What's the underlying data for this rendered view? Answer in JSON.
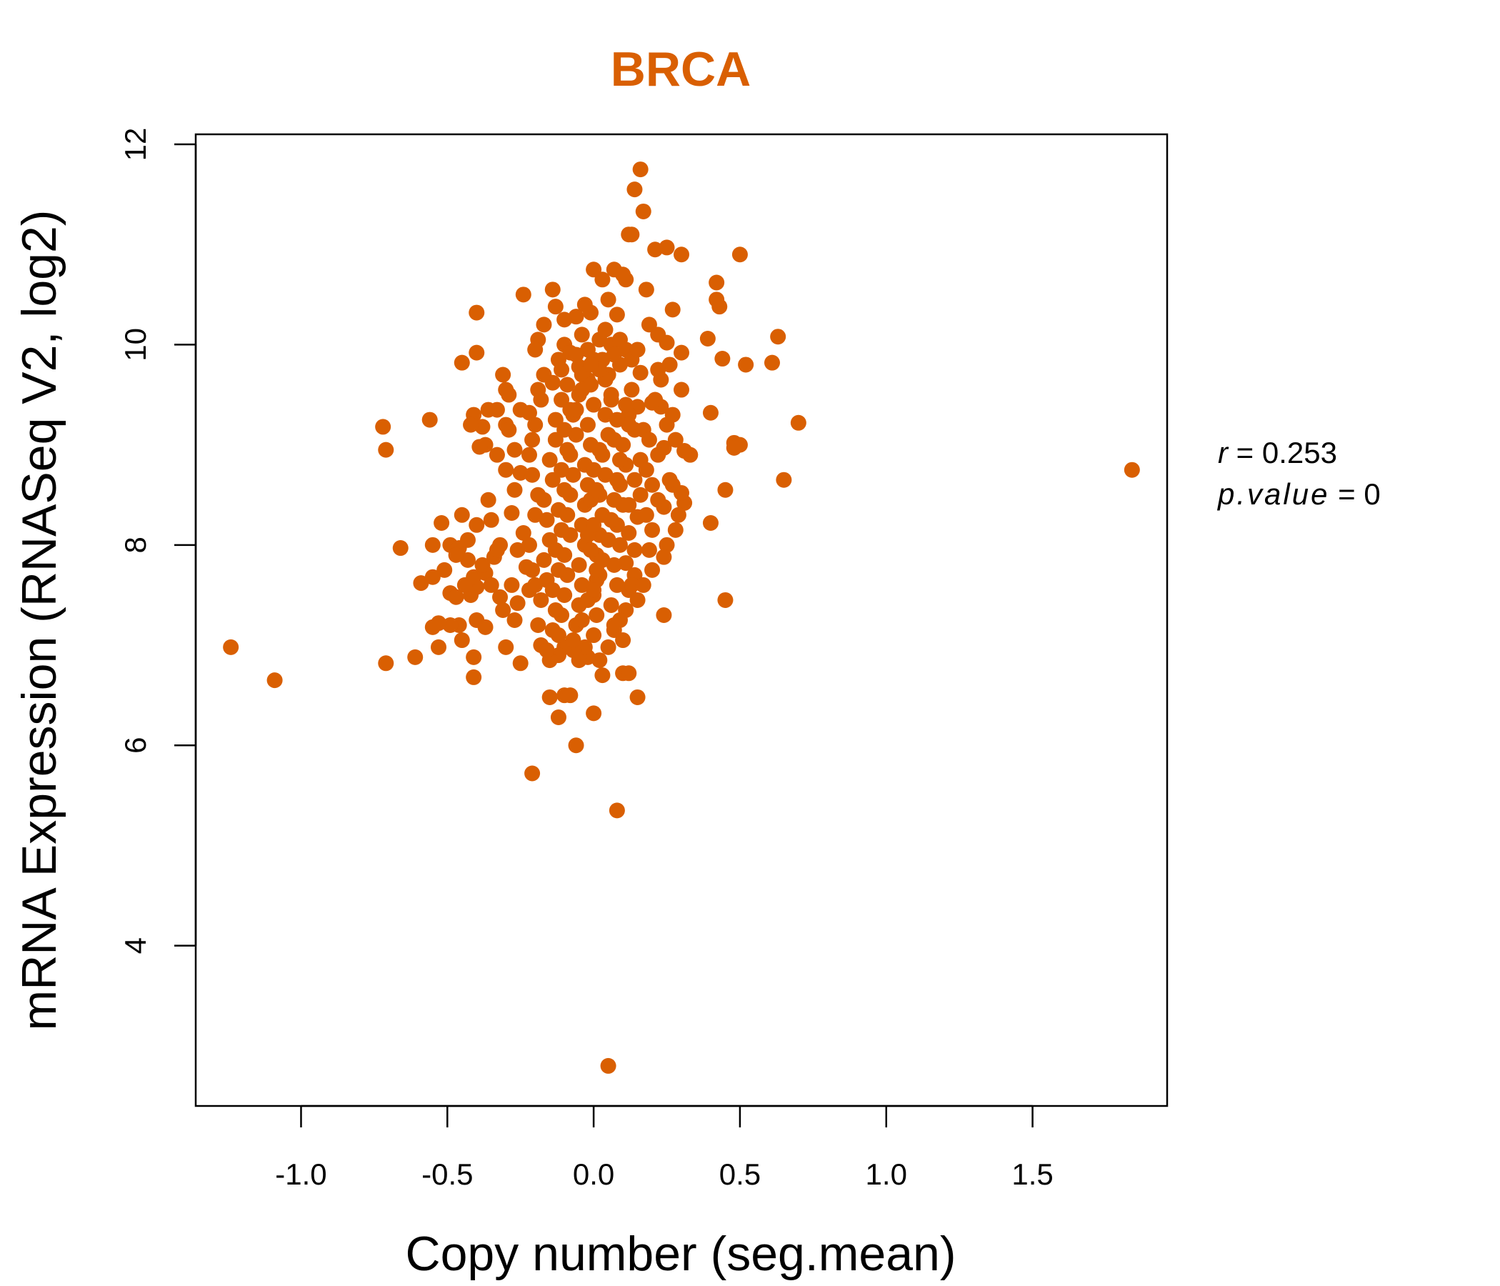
{
  "colors": {
    "accent": "#D95F02",
    "axis": "#000000",
    "background": "#FFFFFF"
  },
  "chart_data": {
    "type": "scatter",
    "title": "BRCA",
    "xlabel": "Copy number (seg.mean)",
    "ylabel": "mRNA Expression (RNASeq V2, log2)",
    "xlim": [
      -1.36,
      1.96
    ],
    "ylim": [
      2.4,
      12.1
    ],
    "xticks": [
      -1.0,
      -0.5,
      0.0,
      0.5,
      1.0,
      1.5
    ],
    "xtick_labels": [
      "-1.0",
      "-0.5",
      "0.0",
      "0.5",
      "1.0",
      "1.5"
    ],
    "yticks": [
      4,
      6,
      8,
      10,
      12
    ],
    "ytick_labels": [
      "4",
      "6",
      "8",
      "10",
      "12"
    ],
    "grid": false,
    "stats": {
      "r_label": "r",
      "r_value": "0.253",
      "p_label": "p.value",
      "p_value": "0"
    },
    "points": [
      [
        1.84,
        8.75
      ],
      [
        -1.24,
        6.98
      ],
      [
        -1.09,
        6.65
      ],
      [
        0.7,
        9.22
      ],
      [
        0.65,
        8.65
      ],
      [
        0.63,
        10.08
      ],
      [
        0.61,
        9.82
      ],
      [
        0.52,
        9.8
      ],
      [
        0.5,
        10.9
      ],
      [
        0.5,
        9.0
      ],
      [
        0.48,
        9.02
      ],
      [
        0.48,
        8.97
      ],
      [
        0.45,
        8.55
      ],
      [
        0.45,
        7.45
      ],
      [
        0.44,
        9.86
      ],
      [
        0.43,
        10.38
      ],
      [
        0.42,
        10.45
      ],
      [
        0.42,
        10.62
      ],
      [
        0.4,
        8.22
      ],
      [
        0.4,
        9.32
      ],
      [
        0.39,
        10.06
      ],
      [
        0.33,
        8.9
      ],
      [
        0.31,
        8.94
      ],
      [
        0.31,
        8.42
      ],
      [
        0.3,
        8.52
      ],
      [
        0.3,
        9.55
      ],
      [
        0.3,
        9.92
      ],
      [
        0.3,
        10.9
      ],
      [
        0.28,
        8.15
      ],
      [
        0.27,
        8.6
      ],
      [
        0.27,
        10.35
      ],
      [
        0.26,
        8.65
      ],
      [
        0.26,
        9.8
      ],
      [
        0.25,
        8.0
      ],
      [
        0.25,
        10.02
      ],
      [
        0.25,
        10.97
      ],
      [
        0.24,
        7.3
      ],
      [
        0.24,
        7.88
      ],
      [
        0.24,
        8.38
      ],
      [
        0.24,
        8.97
      ],
      [
        0.23,
        9.38
      ],
      [
        0.22,
        8.9
      ],
      [
        0.22,
        9.75
      ],
      [
        0.21,
        10.95
      ],
      [
        0.2,
        9.42
      ],
      [
        0.2,
        8.6
      ],
      [
        0.19,
        7.95
      ],
      [
        0.18,
        10.55
      ],
      [
        0.17,
        11.33
      ],
      [
        0.16,
        11.75
      ],
      [
        0.14,
        11.55
      ],
      [
        0.13,
        11.1
      ],
      [
        0.12,
        11.1
      ],
      [
        0.11,
        10.65
      ],
      [
        0.1,
        10.7
      ],
      [
        0.07,
        10.75
      ],
      [
        0.0,
        10.75
      ],
      [
        0.03,
        10.65
      ],
      [
        0.05,
        10.45
      ],
      [
        0.08,
        10.3
      ],
      [
        -0.01,
        10.32
      ],
      [
        -0.03,
        10.4
      ],
      [
        -0.06,
        10.28
      ],
      [
        -0.1,
        10.25
      ],
      [
        -0.13,
        10.38
      ],
      [
        -0.14,
        10.55
      ],
      [
        -0.17,
        10.2
      ],
      [
        -0.19,
        10.05
      ],
      [
        -0.2,
        9.95
      ],
      [
        -0.24,
        10.5
      ],
      [
        -0.4,
        10.32
      ],
      [
        -0.4,
        9.92
      ],
      [
        -0.45,
        9.82
      ],
      [
        -0.31,
        9.7
      ],
      [
        -0.3,
        9.55
      ],
      [
        -0.29,
        9.5
      ],
      [
        -0.33,
        9.35
      ],
      [
        -0.36,
        9.35
      ],
      [
        -0.41,
        9.3
      ],
      [
        -0.3,
        9.2
      ],
      [
        -0.38,
        9.18
      ],
      [
        -0.37,
        9.0
      ],
      [
        -0.39,
        8.98
      ],
      [
        -0.33,
        8.9
      ],
      [
        -0.3,
        8.75
      ],
      [
        -0.72,
        9.18
      ],
      [
        -0.71,
        8.95
      ],
      [
        -0.56,
        9.25
      ],
      [
        -0.42,
        9.2
      ],
      [
        -0.36,
        8.45
      ],
      [
        -0.4,
        8.2
      ],
      [
        -0.45,
        8.3
      ],
      [
        -0.49,
        8.0
      ],
      [
        -0.46,
        7.97
      ],
      [
        -0.52,
        8.22
      ],
      [
        -0.55,
        8.0
      ],
      [
        -0.66,
        7.97
      ],
      [
        -0.59,
        7.62
      ],
      [
        -0.55,
        7.68
      ],
      [
        -0.51,
        7.75
      ],
      [
        -0.49,
        7.52
      ],
      [
        -0.47,
        7.48
      ],
      [
        -0.42,
        7.5
      ],
      [
        -0.4,
        7.58
      ],
      [
        -0.41,
        7.68
      ],
      [
        -0.43,
        7.85
      ],
      [
        -0.37,
        7.72
      ],
      [
        -0.34,
        7.88
      ],
      [
        -0.32,
        8.0
      ],
      [
        -0.32,
        7.48
      ],
      [
        -0.31,
        7.35
      ],
      [
        -0.4,
        7.25
      ],
      [
        -0.37,
        7.18
      ],
      [
        -0.46,
        7.2
      ],
      [
        -0.49,
        7.2
      ],
      [
        -0.53,
        7.22
      ],
      [
        -0.55,
        7.18
      ],
      [
        -0.53,
        6.98
      ],
      [
        -0.45,
        7.05
      ],
      [
        -0.41,
        6.88
      ],
      [
        -0.41,
        6.68
      ],
      [
        -0.61,
        6.88
      ],
      [
        -0.71,
        6.82
      ],
      [
        -0.3,
        6.98
      ],
      [
        -0.25,
        6.82
      ],
      [
        -0.26,
        7.42
      ],
      [
        -0.22,
        7.55
      ],
      [
        -0.23,
        7.78
      ],
      [
        -0.26,
        7.95
      ],
      [
        -0.24,
        8.12
      ],
      [
        -0.28,
        8.32
      ],
      [
        -0.27,
        8.55
      ],
      [
        -0.25,
        8.72
      ],
      [
        -0.22,
        8.9
      ],
      [
        -0.21,
        9.05
      ],
      [
        -0.22,
        9.32
      ],
      [
        -0.19,
        9.55
      ],
      [
        -0.17,
        9.7
      ],
      [
        -0.14,
        9.62
      ],
      [
        -0.12,
        9.85
      ],
      [
        -0.1,
        10.0
      ],
      [
        -0.08,
        9.92
      ],
      [
        -0.05,
        9.78
      ],
      [
        -0.04,
        10.1
      ],
      [
        -0.02,
        9.95
      ],
      [
        -0.02,
        9.65
      ],
      [
        0.0,
        9.85
      ],
      [
        0.02,
        10.05
      ],
      [
        0.04,
        10.15
      ],
      [
        0.06,
        10.0
      ],
      [
        0.09,
        10.05
      ],
      [
        0.11,
        9.95
      ],
      [
        0.13,
        9.85
      ],
      [
        0.15,
        9.95
      ],
      [
        0.16,
        9.72
      ],
      [
        0.13,
        9.55
      ],
      [
        0.15,
        9.38
      ],
      [
        0.12,
        9.3
      ],
      [
        0.14,
        9.15
      ],
      [
        0.17,
        9.15
      ],
      [
        0.19,
        9.05
      ],
      [
        0.16,
        8.85
      ],
      [
        0.18,
        8.75
      ],
      [
        0.14,
        8.65
      ],
      [
        0.16,
        8.5
      ],
      [
        0.12,
        8.4
      ],
      [
        0.15,
        8.28
      ],
      [
        0.12,
        8.12
      ],
      [
        0.14,
        7.95
      ],
      [
        0.11,
        7.82
      ],
      [
        0.14,
        7.7
      ],
      [
        0.12,
        7.55
      ],
      [
        0.15,
        7.45
      ],
      [
        0.11,
        7.35
      ],
      [
        0.13,
        7.6
      ],
      [
        0.09,
        7.25
      ],
      [
        0.1,
        7.05
      ],
      [
        0.07,
        7.15
      ],
      [
        0.05,
        6.98
      ],
      [
        0.1,
        6.72
      ],
      [
        0.12,
        6.72
      ],
      [
        0.15,
        6.48
      ],
      [
        0.03,
        6.7
      ],
      [
        0.02,
        6.85
      ],
      [
        -0.02,
        6.88
      ],
      [
        -0.05,
        6.85
      ],
      [
        -0.03,
        6.98
      ],
      [
        -0.07,
        6.95
      ],
      [
        -0.1,
        6.98
      ],
      [
        -0.12,
        6.9
      ],
      [
        -0.15,
        6.85
      ],
      [
        -0.1,
        6.5
      ],
      [
        -0.08,
        6.5
      ],
      [
        -0.15,
        6.48
      ],
      [
        -0.12,
        6.28
      ],
      [
        0.0,
        6.32
      ],
      [
        -0.06,
        6.0
      ],
      [
        -0.21,
        5.72
      ],
      [
        0.08,
        5.35
      ],
      [
        0.05,
        2.8
      ],
      [
        -0.19,
        7.2
      ],
      [
        -0.18,
        7.45
      ],
      [
        -0.16,
        7.65
      ],
      [
        -0.17,
        7.85
      ],
      [
        -0.15,
        8.05
      ],
      [
        -0.16,
        8.25
      ],
      [
        -0.17,
        8.45
      ],
      [
        -0.14,
        8.65
      ],
      [
        -0.15,
        8.85
      ],
      [
        -0.13,
        9.05
      ],
      [
        -0.13,
        9.25
      ],
      [
        -0.11,
        9.45
      ],
      [
        -0.09,
        9.6
      ],
      [
        -0.12,
        7.1
      ],
      [
        -0.11,
        7.3
      ],
      [
        -0.1,
        7.5
      ],
      [
        -0.09,
        7.7
      ],
      [
        -0.1,
        7.9
      ],
      [
        -0.08,
        8.1
      ],
      [
        -0.09,
        8.3
      ],
      [
        -0.08,
        8.5
      ],
      [
        -0.07,
        8.7
      ],
      [
        -0.08,
        8.9
      ],
      [
        -0.06,
        9.1
      ],
      [
        -0.07,
        9.3
      ],
      [
        -0.05,
        9.5
      ],
      [
        -0.04,
        9.7
      ],
      [
        -0.06,
        7.2
      ],
      [
        -0.05,
        7.4
      ],
      [
        -0.04,
        7.6
      ],
      [
        -0.05,
        7.8
      ],
      [
        -0.03,
        8.0
      ],
      [
        -0.04,
        8.2
      ],
      [
        -0.03,
        8.4
      ],
      [
        -0.02,
        8.6
      ],
      [
        -0.03,
        8.8
      ],
      [
        -0.01,
        9.0
      ],
      [
        -0.02,
        9.2
      ],
      [
        0.0,
        9.4
      ],
      [
        -0.01,
        9.6
      ],
      [
        0.0,
        7.1
      ],
      [
        0.01,
        7.3
      ],
      [
        0.0,
        7.5
      ],
      [
        0.02,
        7.7
      ],
      [
        0.01,
        7.9
      ],
      [
        0.02,
        8.1
      ],
      [
        0.03,
        8.3
      ],
      [
        0.02,
        8.5
      ],
      [
        0.04,
        8.7
      ],
      [
        0.03,
        8.9
      ],
      [
        0.05,
        9.1
      ],
      [
        0.04,
        9.3
      ],
      [
        0.06,
        9.5
      ],
      [
        0.05,
        9.7
      ],
      [
        0.07,
        7.2
      ],
      [
        0.06,
        7.4
      ],
      [
        0.08,
        7.6
      ],
      [
        0.07,
        7.8
      ],
      [
        0.09,
        8.0
      ],
      [
        0.08,
        8.2
      ],
      [
        0.1,
        8.4
      ],
      [
        0.09,
        8.6
      ],
      [
        0.11,
        8.8
      ],
      [
        0.1,
        9.0
      ],
      [
        0.12,
        9.2
      ],
      [
        0.11,
        9.4
      ],
      [
        0.09,
        9.8
      ],
      [
        0.07,
        9.9
      ],
      [
        0.03,
        9.85
      ],
      [
        -0.06,
        9.9
      ],
      [
        -0.11,
        9.75
      ],
      [
        -0.18,
        9.45
      ],
      [
        -0.2,
        9.2
      ],
      [
        -0.21,
        8.7
      ],
      [
        -0.19,
        8.5
      ],
      [
        -0.2,
        8.3
      ],
      [
        -0.22,
        8.0
      ],
      [
        -0.21,
        7.75
      ],
      [
        -0.2,
        7.6
      ],
      [
        -0.18,
        7.0
      ],
      [
        -0.16,
        6.95
      ],
      [
        -0.14,
        7.15
      ],
      [
        -0.13,
        7.35
      ],
      [
        -0.14,
        7.55
      ],
      [
        -0.12,
        7.75
      ],
      [
        -0.13,
        7.95
      ],
      [
        -0.11,
        8.15
      ],
      [
        -0.12,
        8.35
      ],
      [
        -0.1,
        8.55
      ],
      [
        -0.11,
        8.75
      ],
      [
        -0.09,
        8.95
      ],
      [
        -0.1,
        9.15
      ],
      [
        -0.08,
        9.35
      ],
      [
        -0.07,
        7.05
      ],
      [
        -0.04,
        7.25
      ],
      [
        -0.02,
        7.45
      ],
      [
        0.01,
        7.65
      ],
      [
        0.03,
        7.85
      ],
      [
        0.05,
        8.05
      ],
      [
        0.06,
        8.25
      ],
      [
        0.07,
        8.45
      ],
      [
        0.08,
        8.65
      ],
      [
        0.09,
        8.85
      ],
      [
        0.07,
        9.05
      ],
      [
        0.08,
        9.25
      ],
      [
        0.06,
        9.45
      ],
      [
        0.04,
        9.65
      ],
      [
        0.02,
        9.75
      ],
      [
        -0.01,
        9.8
      ],
      [
        -0.04,
        9.55
      ],
      [
        -0.06,
        9.35
      ],
      [
        -0.02,
        8.1
      ],
      [
        0.0,
        8.2
      ],
      [
        -0.01,
        8.45
      ],
      [
        0.01,
        8.55
      ],
      [
        0.0,
        8.75
      ],
      [
        0.02,
        8.95
      ],
      [
        -0.01,
        7.95
      ],
      [
        0.01,
        7.75
      ],
      [
        0.0,
        7.55
      ],
      [
        0.2,
        8.15
      ],
      [
        0.22,
        8.45
      ],
      [
        0.18,
        8.3
      ],
      [
        0.2,
        7.75
      ],
      [
        0.17,
        7.6
      ],
      [
        -0.27,
        8.95
      ],
      [
        -0.29,
        9.15
      ],
      [
        -0.25,
        9.35
      ],
      [
        -0.28,
        7.6
      ],
      [
        -0.27,
        7.25
      ],
      [
        -0.35,
        8.25
      ],
      [
        -0.33,
        7.95
      ],
      [
        -0.35,
        7.6
      ],
      [
        -0.38,
        7.8
      ],
      [
        -0.44,
        7.6
      ],
      [
        -0.47,
        7.9
      ],
      [
        -0.43,
        8.05
      ],
      [
        0.23,
        9.65
      ],
      [
        0.21,
        9.45
      ],
      [
        0.19,
        10.2
      ],
      [
        0.22,
        10.1
      ],
      [
        0.25,
        9.2
      ],
      [
        0.27,
        9.3
      ],
      [
        0.28,
        9.05
      ],
      [
        0.29,
        8.3
      ]
    ]
  }
}
